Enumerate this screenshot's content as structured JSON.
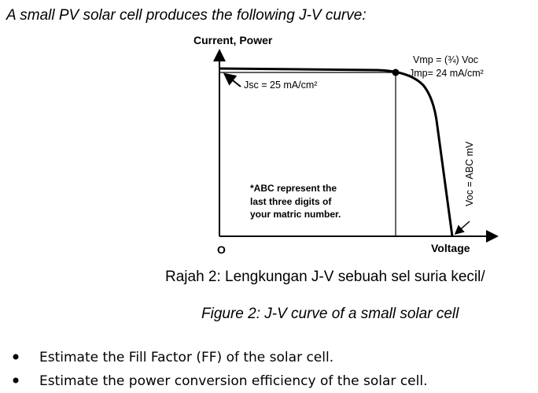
{
  "header": {
    "title": "A small PV solar cell produces the following J-V curve:"
  },
  "figure": {
    "y_axis_label": "Current, Power",
    "x_axis_label": "Voltage",
    "origin_label": "O",
    "vmp_label": "Vmp = (¾) Voc",
    "jmp_label": "Jmp= 24 mA/cm²",
    "jsc_label": "Jsc = 25 mA/cm²",
    "voc_label": "Voc = ABC mV",
    "note": [
      "*ABC represent the",
      "last three digits of",
      "your matric number."
    ]
  },
  "caption": {
    "malay": "Rajah 2: Lengkungan J-V sebuah sel suria kecil/",
    "english": "Figure 2: J-V curve of a small solar cell"
  },
  "bullets": [
    "Estimate the Fill Factor (FF) of the solar cell.",
    "Estimate the power conversion efficiency of the solar cell."
  ]
}
